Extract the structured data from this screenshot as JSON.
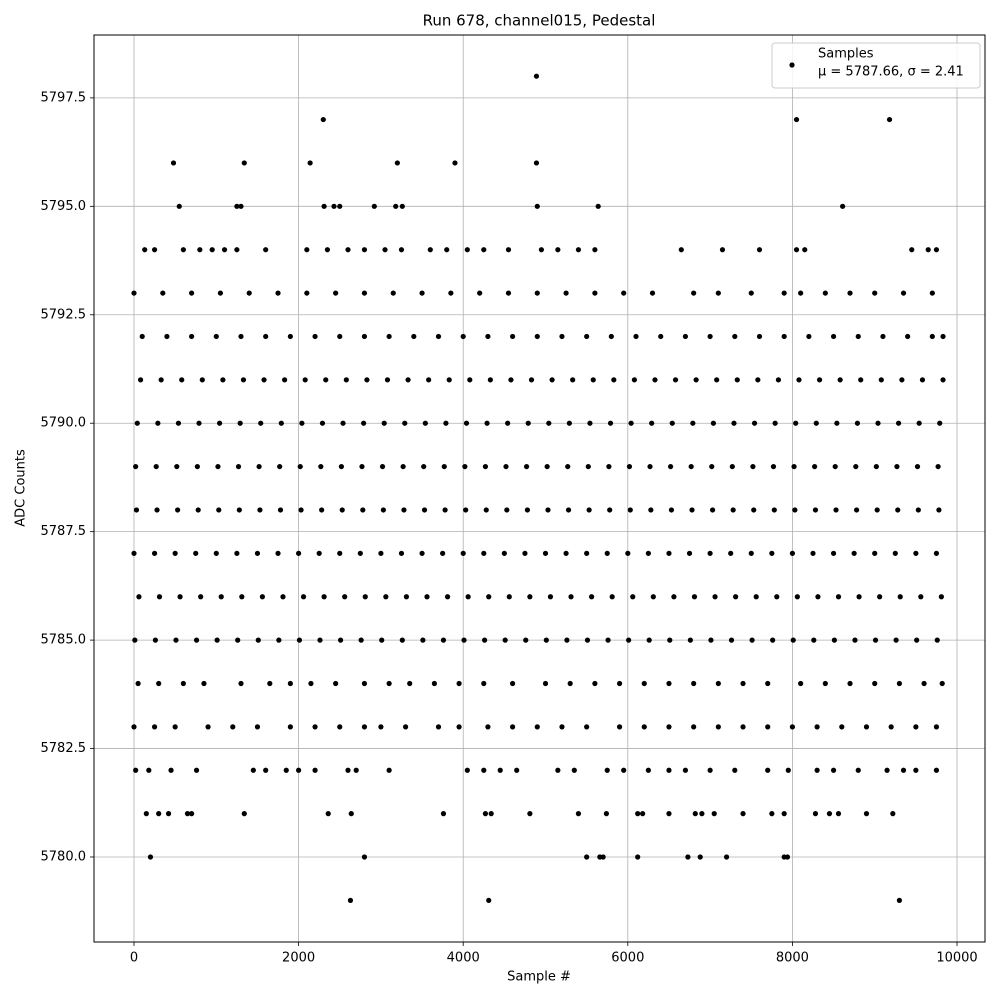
{
  "chart_data": {
    "type": "scatter",
    "title": "Run 678, channel015, Pedestal",
    "x_label": "Sample #",
    "y_label": "ADC Counts",
    "annotation": "μ = 5787.66, σ = 2.41",
    "xlim": [
      -486,
      10340
    ],
    "ylim": [
      5778.04,
      5798.95
    ],
    "xticks": [
      0,
      2000,
      4000,
      6000,
      8000,
      10000
    ],
    "yticks": [
      {
        "value": 5780,
        "label": "5780.0"
      },
      {
        "value": 5782.5,
        "label": "5782.5"
      },
      {
        "value": 5785,
        "label": "5785.0"
      },
      {
        "value": 5787.5,
        "label": "5787.5"
      },
      {
        "value": 5790,
        "label": "5790.0"
      },
      {
        "value": 5792.5,
        "label": "5792.5"
      },
      {
        "value": 5795,
        "label": "5795.0"
      },
      {
        "value": 5797.5,
        "label": "5797.5"
      }
    ],
    "grid": true,
    "legend": "upper right",
    "x": [
      2630,
      4310,
      9300,
      200,
      2800,
      5500,
      5660,
      5700,
      6120,
      6730,
      6880,
      7200,
      7900,
      7940,
      150,
      300,
      420,
      650,
      700,
      1340,
      2360,
      2640,
      3760,
      4270,
      4340,
      4810,
      5400,
      5740,
      6120,
      6180,
      6500,
      6820,
      6900,
      7050,
      7400,
      7750,
      7900,
      8280,
      8450,
      8560,
      8900,
      9220,
      550,
      1250,
      1300,
      2310,
      2430,
      2500,
      2920,
      3180,
      3260,
      4900,
      5640,
      8610,
      480,
      1340,
      2140,
      3200,
      3900,
      4890,
      2300,
      8050,
      9180,
      4890,
      130,
      250,
      600,
      800,
      950,
      1100,
      1250,
      1600,
      2100,
      2350,
      2600,
      2800,
      3050,
      3250,
      3600,
      3800,
      4050,
      4250,
      4550,
      4950,
      5150,
      5400,
      5600,
      6650,
      7150,
      7600,
      8050,
      8150,
      9450,
      9650,
      9750,
      0,
      350,
      700,
      1050,
      1400,
      1750,
      2100,
      2450,
      2800,
      3150,
      3500,
      3850,
      4200,
      4550,
      4900,
      5250,
      5600,
      5950,
      6300,
      6800,
      7100,
      7500,
      7900,
      8100,
      8400,
      8700,
      9000,
      9350,
      9700,
      100,
      400,
      700,
      1000,
      1300,
      1600,
      1900,
      2200,
      2500,
      2800,
      3100,
      3400,
      3700,
      4000,
      4300,
      4600,
      4900,
      5200,
      5500,
      5800,
      6100,
      6400,
      6700,
      7000,
      7300,
      7600,
      7900,
      8200,
      8500,
      8800,
      9100,
      9400,
      9700,
      9830,
      20,
      180,
      450,
      760,
      1450,
      1600,
      1850,
      2000,
      2200,
      2600,
      2700,
      3100,
      4050,
      4250,
      4450,
      4650,
      5150,
      5350,
      5750,
      5950,
      6250,
      6500,
      6700,
      7000,
      7300,
      7700,
      7950,
      8300,
      8500,
      8800,
      9150,
      9350,
      9500,
      9750,
      0,
      250,
      500,
      900,
      1200,
      1500,
      1900,
      2200,
      2500,
      2800,
      3000,
      3300,
      3700,
      3950,
      4300,
      4600,
      4900,
      5200,
      5500,
      5900,
      6200,
      6500,
      6800,
      7100,
      7400,
      7700,
      8000,
      8300,
      8600,
      8900,
      9200,
      9500,
      9750,
      50,
      300,
      600,
      850,
      1300,
      1650,
      1900,
      2150,
      2450,
      2800,
      3100,
      3350,
      3650,
      3950,
      4250,
      4600,
      5000,
      5300,
      5600,
      5900,
      6200,
      6500,
      6800,
      7100,
      7400,
      7700,
      8100,
      8400,
      8700,
      9000,
      9300,
      9600,
      9820,
      10,
      260,
      510,
      760,
      1010,
      1260,
      1510,
      1760,
      2010,
      2260,
      2510,
      2760,
      3010,
      3260,
      3510,
      3760,
      4010,
      4260,
      4510,
      4760,
      5010,
      5260,
      5510,
      5760,
      6010,
      6260,
      6510,
      6760,
      7010,
      7260,
      7510,
      7760,
      8010,
      8260,
      8510,
      8760,
      9010,
      9260,
      9510,
      9760,
      60,
      310,
      560,
      810,
      1060,
      1310,
      1560,
      1810,
      2060,
      2310,
      2560,
      2810,
      3060,
      3310,
      3560,
      3810,
      4060,
      4310,
      4560,
      4810,
      5060,
      5310,
      5560,
      5810,
      6060,
      6310,
      6560,
      6810,
      7060,
      7310,
      7560,
      7810,
      8060,
      8310,
      8560,
      8810,
      9060,
      9310,
      9560,
      9810,
      0,
      250,
      500,
      750,
      1000,
      1250,
      1500,
      1750,
      2000,
      2250,
      2500,
      2750,
      3000,
      3250,
      3500,
      3750,
      4000,
      4250,
      4500,
      4750,
      5000,
      5250,
      5500,
      5750,
      6000,
      6250,
      6500,
      6750,
      7000,
      7250,
      7500,
      7750,
      8000,
      8250,
      8500,
      8750,
      9000,
      9250,
      9500,
      9750,
      30,
      280,
      530,
      780,
      1030,
      1280,
      1530,
      1780,
      2030,
      2280,
      2530,
      2780,
      3030,
      3280,
      3530,
      3780,
      4030,
      4280,
      4530,
      4780,
      5030,
      5280,
      5530,
      5780,
      6030,
      6280,
      6530,
      6780,
      7030,
      7280,
      7530,
      7780,
      8030,
      8280,
      8530,
      8780,
      9030,
      9280,
      9530,
      9780,
      20,
      270,
      520,
      770,
      1020,
      1270,
      1520,
      1770,
      2020,
      2270,
      2520,
      2770,
      3020,
      3270,
      3520,
      3770,
      4020,
      4270,
      4520,
      4770,
      5020,
      5270,
      5520,
      5770,
      6020,
      6270,
      6520,
      6770,
      7020,
      7270,
      7520,
      7770,
      8020,
      8270,
      8520,
      8770,
      9020,
      9270,
      9520,
      9770,
      40,
      290,
      540,
      790,
      1040,
      1290,
      1540,
      1790,
      2040,
      2290,
      2540,
      2790,
      3040,
      3290,
      3540,
      3790,
      4040,
      4290,
      4540,
      4790,
      5040,
      5290,
      5540,
      5790,
      6040,
      6290,
      6540,
      6790,
      7040,
      7290,
      7540,
      7790,
      8040,
      8290,
      8540,
      8790,
      9040,
      9290,
      9540,
      9790,
      80,
      330,
      580,
      830,
      1080,
      1330,
      1580,
      1830,
      2080,
      2330,
      2580,
      2830,
      3080,
      3330,
      3580,
      3830,
      4080,
      4330,
      4580,
      4830,
      5080,
      5330,
      5580,
      5830,
      6080,
      6330,
      6580,
      6830,
      7080,
      7330,
      7580,
      7830,
      8080,
      8330,
      8580,
      8830,
      9080,
      9330,
      9580,
      9830
    ],
    "series": [
      {
        "name": "Samples",
        "color": "#000000",
        "values": [
          5779,
          5779,
          5779,
          5780,
          5780,
          5780,
          5780,
          5780,
          5780,
          5780,
          5780,
          5780,
          5780,
          5780,
          5781,
          5781,
          5781,
          5781,
          5781,
          5781,
          5781,
          5781,
          5781,
          5781,
          5781,
          5781,
          5781,
          5781,
          5781,
          5781,
          5781,
          5781,
          5781,
          5781,
          5781,
          5781,
          5781,
          5781,
          5781,
          5781,
          5781,
          5781,
          5795,
          5795,
          5795,
          5795,
          5795,
          5795,
          5795,
          5795,
          5795,
          5795,
          5795,
          5795,
          5796,
          5796,
          5796,
          5796,
          5796,
          5796,
          5797,
          5797,
          5797,
          5798,
          5794,
          5794,
          5794,
          5794,
          5794,
          5794,
          5794,
          5794,
          5794,
          5794,
          5794,
          5794,
          5794,
          5794,
          5794,
          5794,
          5794,
          5794,
          5794,
          5794,
          5794,
          5794,
          5794,
          5794,
          5794,
          5794,
          5794,
          5794,
          5794,
          5794,
          5794,
          5793,
          5793,
          5793,
          5793,
          5793,
          5793,
          5793,
          5793,
          5793,
          5793,
          5793,
          5793,
          5793,
          5793,
          5793,
          5793,
          5793,
          5793,
          5793,
          5793,
          5793,
          5793,
          5793,
          5793,
          5793,
          5793,
          5793,
          5793,
          5793,
          5792,
          5792,
          5792,
          5792,
          5792,
          5792,
          5792,
          5792,
          5792,
          5792,
          5792,
          5792,
          5792,
          5792,
          5792,
          5792,
          5792,
          5792,
          5792,
          5792,
          5792,
          5792,
          5792,
          5792,
          5792,
          5792,
          5792,
          5792,
          5792,
          5792,
          5792,
          5792,
          5792,
          5792,
          5782,
          5782,
          5782,
          5782,
          5782,
          5782,
          5782,
          5782,
          5782,
          5782,
          5782,
          5782,
          5782,
          5782,
          5782,
          5782,
          5782,
          5782,
          5782,
          5782,
          5782,
          5782,
          5782,
          5782,
          5782,
          5782,
          5782,
          5782,
          5782,
          5782,
          5782,
          5782,
          5782,
          5782,
          5783,
          5783,
          5783,
          5783,
          5783,
          5783,
          5783,
          5783,
          5783,
          5783,
          5783,
          5783,
          5783,
          5783,
          5783,
          5783,
          5783,
          5783,
          5783,
          5783,
          5783,
          5783,
          5783,
          5783,
          5783,
          5783,
          5783,
          5783,
          5783,
          5783,
          5783,
          5783,
          5783,
          5784,
          5784,
          5784,
          5784,
          5784,
          5784,
          5784,
          5784,
          5784,
          5784,
          5784,
          5784,
          5784,
          5784,
          5784,
          5784,
          5784,
          5784,
          5784,
          5784,
          5784,
          5784,
          5784,
          5784,
          5784,
          5784,
          5784,
          5784,
          5784,
          5784,
          5784,
          5784,
          5784,
          5785,
          5785,
          5785,
          5785,
          5785,
          5785,
          5785,
          5785,
          5785,
          5785,
          5785,
          5785,
          5785,
          5785,
          5785,
          5785,
          5785,
          5785,
          5785,
          5785,
          5785,
          5785,
          5785,
          5785,
          5785,
          5785,
          5785,
          5785,
          5785,
          5785,
          5785,
          5785,
          5785,
          5785,
          5785,
          5785,
          5785,
          5785,
          5785,
          5785,
          5786,
          5786,
          5786,
          5786,
          5786,
          5786,
          5786,
          5786,
          5786,
          5786,
          5786,
          5786,
          5786,
          5786,
          5786,
          5786,
          5786,
          5786,
          5786,
          5786,
          5786,
          5786,
          5786,
          5786,
          5786,
          5786,
          5786,
          5786,
          5786,
          5786,
          5786,
          5786,
          5786,
          5786,
          5786,
          5786,
          5786,
          5786,
          5786,
          5786,
          5787,
          5787,
          5787,
          5787,
          5787,
          5787,
          5787,
          5787,
          5787,
          5787,
          5787,
          5787,
          5787,
          5787,
          5787,
          5787,
          5787,
          5787,
          5787,
          5787,
          5787,
          5787,
          5787,
          5787,
          5787,
          5787,
          5787,
          5787,
          5787,
          5787,
          5787,
          5787,
          5787,
          5787,
          5787,
          5787,
          5787,
          5787,
          5787,
          5787,
          5788,
          5788,
          5788,
          5788,
          5788,
          5788,
          5788,
          5788,
          5788,
          5788,
          5788,
          5788,
          5788,
          5788,
          5788,
          5788,
          5788,
          5788,
          5788,
          5788,
          5788,
          5788,
          5788,
          5788,
          5788,
          5788,
          5788,
          5788,
          5788,
          5788,
          5788,
          5788,
          5788,
          5788,
          5788,
          5788,
          5788,
          5788,
          5788,
          5788,
          5789,
          5789,
          5789,
          5789,
          5789,
          5789,
          5789,
          5789,
          5789,
          5789,
          5789,
          5789,
          5789,
          5789,
          5789,
          5789,
          5789,
          5789,
          5789,
          5789,
          5789,
          5789,
          5789,
          5789,
          5789,
          5789,
          5789,
          5789,
          5789,
          5789,
          5789,
          5789,
          5789,
          5789,
          5789,
          5789,
          5789,
          5789,
          5789,
          5789,
          5790,
          5790,
          5790,
          5790,
          5790,
          5790,
          5790,
          5790,
          5790,
          5790,
          5790,
          5790,
          5790,
          5790,
          5790,
          5790,
          5790,
          5790,
          5790,
          5790,
          5790,
          5790,
          5790,
          5790,
          5790,
          5790,
          5790,
          5790,
          5790,
          5790,
          5790,
          5790,
          5790,
          5790,
          5790,
          5790,
          5790,
          5790,
          5790,
          5790,
          5791,
          5791,
          5791,
          5791,
          5791,
          5791,
          5791,
          5791,
          5791,
          5791,
          5791,
          5791,
          5791,
          5791,
          5791,
          5791,
          5791,
          5791,
          5791,
          5791,
          5791,
          5791,
          5791,
          5791,
          5791,
          5791,
          5791,
          5791,
          5791,
          5791,
          5791,
          5791,
          5791,
          5791,
          5791,
          5791,
          5791,
          5791,
          5791,
          5791
        ]
      }
    ]
  }
}
